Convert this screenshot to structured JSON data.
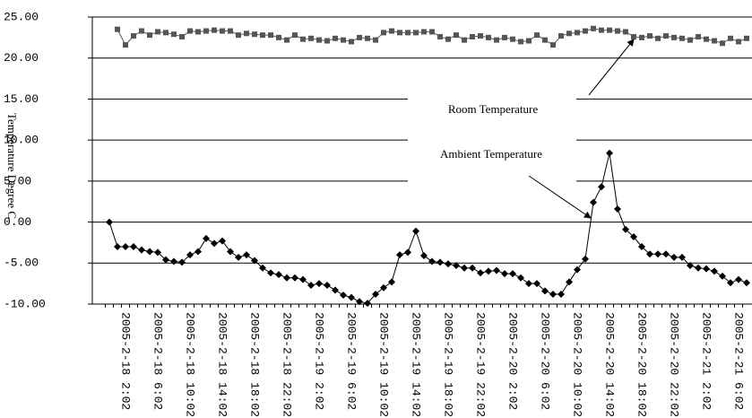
{
  "chart_data": {
    "type": "line",
    "y_label": "Temperature Degree C",
    "categories": [
      null,
      null,
      "2005-2-18 2:02",
      null,
      null,
      null,
      "2005-2-18 6:02",
      null,
      null,
      null,
      "2005-2-18 10:02",
      null,
      null,
      null,
      "2005-2-18 14:02",
      null,
      null,
      null,
      "2005-2-18 18:02",
      null,
      null,
      null,
      "2005-2-18 22:02",
      null,
      null,
      null,
      "2005-2-19 2:02",
      null,
      null,
      null,
      "2005-2-19 6:02",
      null,
      null,
      null,
      "2005-2-19 10:02",
      null,
      null,
      null,
      "2005-2-19 14:02",
      null,
      null,
      null,
      "2005-2-19 18:02",
      null,
      null,
      null,
      "2005-2-19 22:02",
      null,
      null,
      null,
      "2005-2-20 2:02",
      null,
      null,
      null,
      "2005-2-20 6:02",
      null,
      null,
      null,
      "2005-2-20 10:02",
      null,
      null,
      null,
      "2005-2-20 14:02",
      null,
      null,
      null,
      "2005-2-20 18:02",
      null,
      null,
      null,
      "2005-2-20 22:02",
      null,
      null,
      null,
      "2005-2-21 2:02",
      null,
      null,
      null,
      "2005-2-21 6:02",
      null
    ],
    "series": [
      {
        "name": "Room Temperature",
        "color": "#555555",
        "marker": "square",
        "values": [
          null,
          23.5,
          21.6,
          22.7,
          23.3,
          22.8,
          23.2,
          23.1,
          22.9,
          22.6,
          23.3,
          23.2,
          23.3,
          23.4,
          23.3,
          23.3,
          22.8,
          23,
          22.9,
          22.8,
          22.8,
          22.5,
          22.2,
          22.8,
          22.3,
          22.4,
          22.2,
          22.1,
          22.4,
          22.2,
          22,
          22.5,
          22.4,
          22.2,
          23.1,
          23.3,
          23.1,
          23.1,
          23.1,
          23.2,
          23.2,
          22.6,
          22.3,
          22.8,
          22.2,
          22.6,
          22.7,
          22.5,
          22.2,
          22.5,
          22.3,
          22,
          22.1,
          22.8,
          22.2,
          21.6,
          22.7,
          23,
          23.1,
          23.3,
          23.6,
          23.4,
          23.4,
          23.3,
          23.2,
          22.6,
          22.5,
          22.7,
          22.4,
          22.7,
          22.5,
          22.4,
          22.2,
          22.6,
          22.3,
          22.1,
          21.8,
          22.4,
          22,
          22.4
        ]
      },
      {
        "name": "Ambient Temperature",
        "color": "#000000",
        "marker": "diamond",
        "values": [
          0,
          -3,
          -3,
          -3,
          -3.4,
          -3.6,
          -3.7,
          -4.6,
          -4.8,
          -4.9,
          -4,
          -3.6,
          -2,
          -2.6,
          -2.3,
          -3.6,
          -4.3,
          -4,
          -4.7,
          -5.6,
          -6.2,
          -6.4,
          -6.8,
          -6.8,
          -7,
          -7.7,
          -7.5,
          -7.7,
          -8.3,
          -8.9,
          -9.2,
          -9.7,
          -9.9,
          -8.8,
          -8,
          -7.3,
          -4,
          -3.7,
          -1.1,
          -4.1,
          -4.8,
          -4.9,
          -5.1,
          -5.3,
          -5.6,
          -5.6,
          -6.2,
          -6,
          -5.9,
          -6.3,
          -6.3,
          -6.8,
          -7.5,
          -7.5,
          -8.4,
          -8.8,
          -8.8,
          -7.3,
          -5.8,
          -4.5,
          2.4,
          4.3,
          8.4,
          1.6,
          -0.9,
          -1.8,
          -3,
          -3.9,
          -3.9,
          -3.9,
          -4.3,
          -4.3,
          -5.3,
          -5.6,
          -5.7,
          -6,
          -6.6,
          -7.4,
          -7,
          -7.4
        ]
      }
    ],
    "ylim": [
      -10,
      25
    ],
    "yticks": [
      {
        "value": -10,
        "label": "-10.00"
      },
      {
        "value": -5,
        "label": "-5.00"
      },
      {
        "value": 0,
        "label": "0.00"
      },
      {
        "value": 5,
        "label": "5.00"
      },
      {
        "value": 10,
        "label": "10.00"
      },
      {
        "value": 15,
        "label": "15.00"
      },
      {
        "value": 20,
        "label": "20.00"
      },
      {
        "value": 25,
        "label": "25.00"
      }
    ],
    "grid": true
  }
}
